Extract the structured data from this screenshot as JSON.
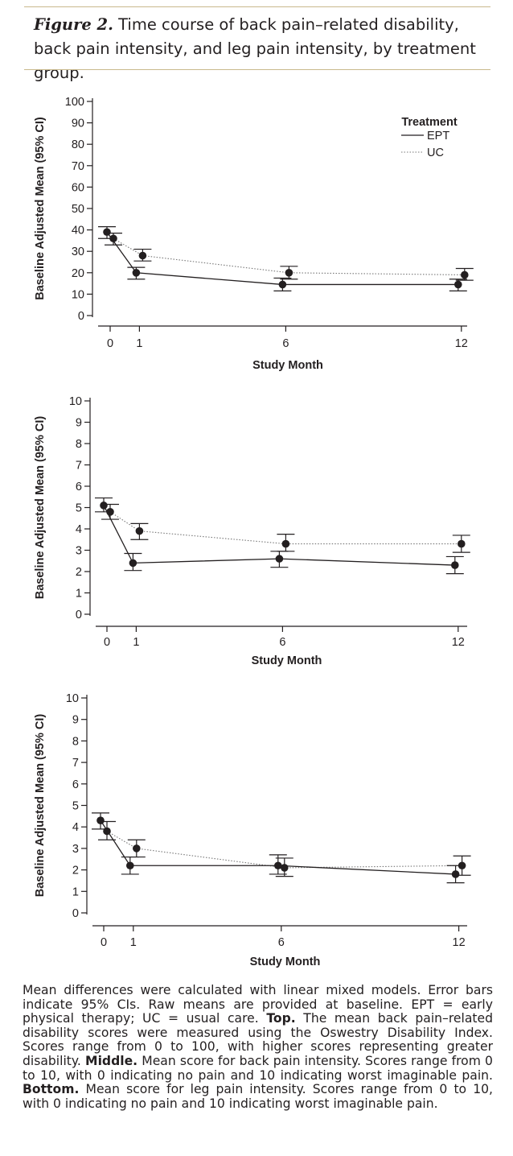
{
  "figure": {
    "label": "Figure 2.",
    "title": "Time course of back pain–related disability, back pain intensity, and leg pain intensity, by treatment group."
  },
  "caption": {
    "intro": "Mean differences were calculated with linear mixed models. Error bars indicate 95% CIs. Raw means are provided at baseline. EPT = early physical therapy; UC = usual care. ",
    "top_label": "Top.",
    "top_text": " The mean back pain–related disability scores were measured using the Oswestry Disability Index. Scores range from 0 to 100, with higher scores representing greater disability. ",
    "middle_label": "Middle.",
    "middle_text": " Mean score for back pain intensity. Scores range from 0 to 10, with 0 indicating no pain and 10 indicating worst imaginable pain. ",
    "bottom_label": "Bottom.",
    "bottom_text": " Mean score for leg pain intensity. Scores range from 0 to 10, with 0 indicating no pain and 10 indicating worst imaginable pain."
  },
  "chart_data": [
    {
      "type": "line",
      "id": "top",
      "xlabel": "Study Month",
      "ylabel": "Baseline Adjusted Mean (95% CI)",
      "x_ticks": [
        0,
        1,
        6,
        12
      ],
      "ylim": [
        0,
        100
      ],
      "y_ticks": [
        0,
        10,
        20,
        30,
        40,
        50,
        60,
        70,
        80,
        90,
        100
      ],
      "legend": {
        "title": "Treatment",
        "entries": [
          "EPT",
          "UC"
        ],
        "position": "top-right"
      },
      "series": [
        {
          "name": "EPT",
          "style": "solid",
          "points": [
            {
              "x": 0,
              "y": 39,
              "lo": 36,
              "hi": 41.5
            },
            {
              "x": 1,
              "y": 20,
              "lo": 17,
              "hi": 22.5
            },
            {
              "x": 6,
              "y": 14.5,
              "lo": 11.5,
              "hi": 17.5
            },
            {
              "x": 12,
              "y": 14.5,
              "lo": 11.5,
              "hi": 17
            }
          ]
        },
        {
          "name": "UC",
          "style": "dotted",
          "points": [
            {
              "x": 0,
              "y": 36,
              "lo": 33,
              "hi": 38.5
            },
            {
              "x": 1,
              "y": 28,
              "lo": 25.5,
              "hi": 31
            },
            {
              "x": 6,
              "y": 20,
              "lo": 17,
              "hi": 23
            },
            {
              "x": 12,
              "y": 19,
              "lo": 16.5,
              "hi": 22
            }
          ]
        }
      ]
    },
    {
      "type": "line",
      "id": "middle",
      "xlabel": "Study Month",
      "ylabel": "Baseline Adjusted Mean (95% CI)",
      "x_ticks": [
        0,
        1,
        6,
        12
      ],
      "ylim": [
        0,
        10
      ],
      "y_ticks": [
        0,
        1,
        2,
        3,
        4,
        5,
        6,
        7,
        8,
        9,
        10
      ],
      "series": [
        {
          "name": "EPT",
          "style": "solid",
          "points": [
            {
              "x": 0,
              "y": 5.1,
              "lo": 4.8,
              "hi": 5.45
            },
            {
              "x": 1,
              "y": 2.4,
              "lo": 2.05,
              "hi": 2.85
            },
            {
              "x": 6,
              "y": 2.6,
              "lo": 2.2,
              "hi": 2.95
            },
            {
              "x": 12,
              "y": 2.3,
              "lo": 1.9,
              "hi": 2.7
            }
          ]
        },
        {
          "name": "UC",
          "style": "dotted",
          "points": [
            {
              "x": 0,
              "y": 4.8,
              "lo": 4.45,
              "hi": 5.15
            },
            {
              "x": 1,
              "y": 3.9,
              "lo": 3.5,
              "hi": 4.25
            },
            {
              "x": 6,
              "y": 3.3,
              "lo": 2.95,
              "hi": 3.75
            },
            {
              "x": 12,
              "y": 3.3,
              "lo": 2.9,
              "hi": 3.7
            }
          ]
        }
      ]
    },
    {
      "type": "line",
      "id": "bottom",
      "xlabel": "Study Month",
      "ylabel": "Baseline Adjusted Mean (95% CI)",
      "x_ticks": [
        0,
        1,
        6,
        12
      ],
      "ylim": [
        0,
        10
      ],
      "y_ticks": [
        0,
        1,
        2,
        3,
        4,
        5,
        6,
        7,
        8,
        9,
        10
      ],
      "series": [
        {
          "name": "EPT",
          "style": "solid",
          "points": [
            {
              "x": 0,
              "y": 4.3,
              "lo": 3.9,
              "hi": 4.65
            },
            {
              "x": 1,
              "y": 2.2,
              "lo": 1.8,
              "hi": 2.6
            },
            {
              "x": 6,
              "y": 2.2,
              "lo": 1.8,
              "hi": 2.7
            },
            {
              "x": 12,
              "y": 1.8,
              "lo": 1.4,
              "hi": 2.2
            }
          ]
        },
        {
          "name": "UC",
          "style": "dotted",
          "points": [
            {
              "x": 0,
              "y": 3.8,
              "lo": 3.4,
              "hi": 4.25
            },
            {
              "x": 1,
              "y": 3.0,
              "lo": 2.6,
              "hi": 3.4
            },
            {
              "x": 6,
              "y": 2.1,
              "lo": 1.7,
              "hi": 2.55
            },
            {
              "x": 12,
              "y": 2.2,
              "lo": 1.75,
              "hi": 2.65
            }
          ]
        }
      ]
    }
  ]
}
